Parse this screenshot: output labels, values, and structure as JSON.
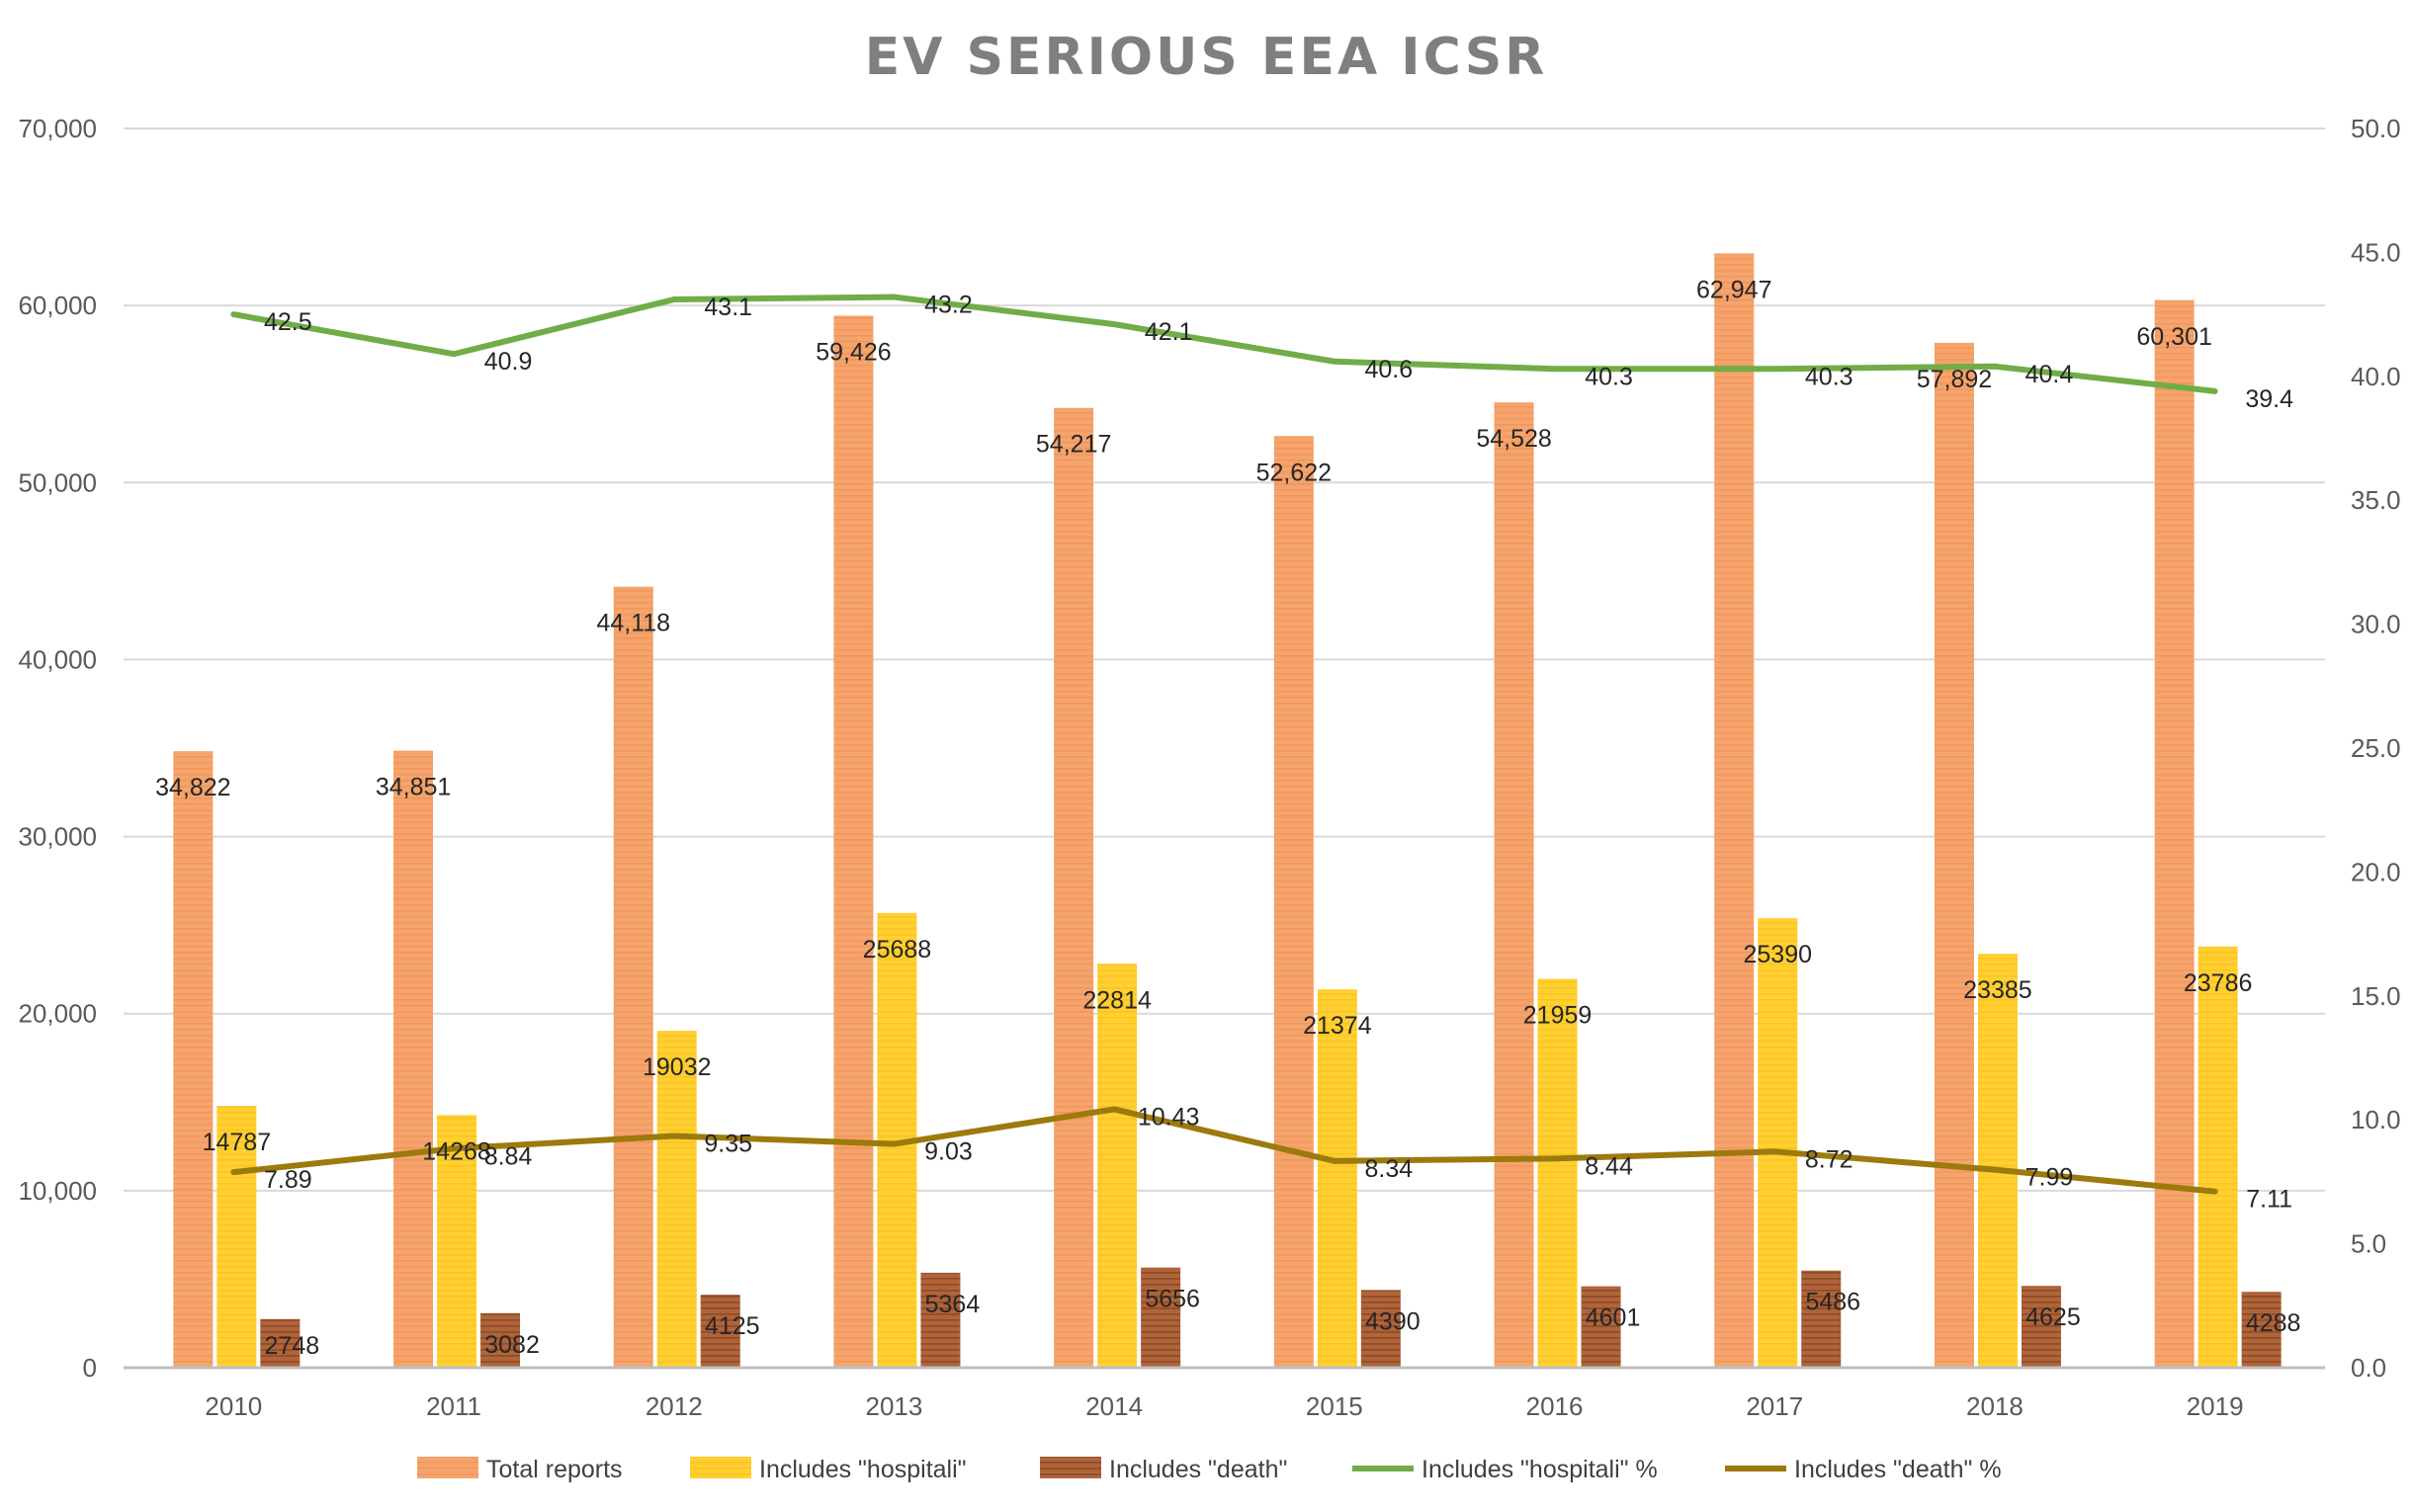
{
  "chart_data": {
    "type": "bar",
    "title": "EV SERIOUS EEA ICSR",
    "categories": [
      "2010",
      "2011",
      "2012",
      "2013",
      "2014",
      "2015",
      "2016",
      "2017",
      "2018",
      "2019"
    ],
    "y_left": {
      "min": 0,
      "max": 70000,
      "step": 10000,
      "tick_labels": [
        "0",
        "10,000",
        "20,000",
        "30,000",
        "40,000",
        "50,000",
        "60,000",
        "70,000"
      ]
    },
    "y_right": {
      "min": 0,
      "max": 50,
      "step": 5,
      "tick_labels": [
        "0.0",
        "5.0",
        "10.0",
        "15.0",
        "20.0",
        "25.0",
        "30.0",
        "35.0",
        "40.0",
        "45.0",
        "50.0"
      ]
    },
    "grid": true,
    "legend_position": "bottom",
    "series": [
      {
        "name": "Total reports",
        "type": "bar",
        "axis": "left",
        "color": "#f4a46c",
        "values": [
          34822,
          34851,
          44118,
          59426,
          54217,
          52622,
          54528,
          62947,
          57892,
          60301
        ],
        "labels": [
          "34,822",
          "34,851",
          "44,118",
          "59,426",
          "54,217",
          "52,622",
          "54,528",
          "62,947",
          "57,892",
          "60,301"
        ]
      },
      {
        "name": "Includes \"hospitali\"",
        "type": "bar",
        "axis": "left",
        "color": "#ffc928",
        "values": [
          14787,
          14268,
          19032,
          25688,
          22814,
          21374,
          21959,
          25390,
          23385,
          23786
        ],
        "labels": [
          "14787",
          "14268",
          "19032",
          "25688",
          "22814",
          "21374",
          "21959",
          "25390",
          "23385",
          "23786"
        ]
      },
      {
        "name": "Includes \"death\"",
        "type": "bar",
        "axis": "left",
        "color": "#a65a2e",
        "values": [
          2748,
          3082,
          4125,
          5364,
          5656,
          4390,
          4601,
          5486,
          4625,
          4288
        ],
        "labels": [
          "2748",
          "3082",
          "4125",
          "5364",
          "5656",
          "4390",
          "4601",
          "5486",
          "4625",
          "4288"
        ]
      },
      {
        "name": "Includes \"hospitali\" %",
        "type": "line",
        "axis": "right",
        "color": "#70ad47",
        "values": [
          42.5,
          40.9,
          43.1,
          43.2,
          42.1,
          40.6,
          40.3,
          40.3,
          40.4,
          39.4
        ],
        "labels": [
          "42.5",
          "40.9",
          "43.1",
          "43.2",
          "42.1",
          "40.6",
          "40.3",
          "40.3",
          "40.4",
          "39.4"
        ]
      },
      {
        "name": "Includes \"death\" %",
        "type": "line",
        "axis": "right",
        "color": "#9c7a0c",
        "values": [
          7.89,
          8.84,
          9.35,
          9.03,
          10.43,
          8.34,
          8.44,
          8.72,
          7.99,
          7.11
        ],
        "labels": [
          "7.89",
          "8.84",
          "9.35",
          "9.03",
          "10.43",
          "8.34",
          "8.44",
          "8.72",
          "7.99",
          "7.11"
        ]
      }
    ]
  }
}
